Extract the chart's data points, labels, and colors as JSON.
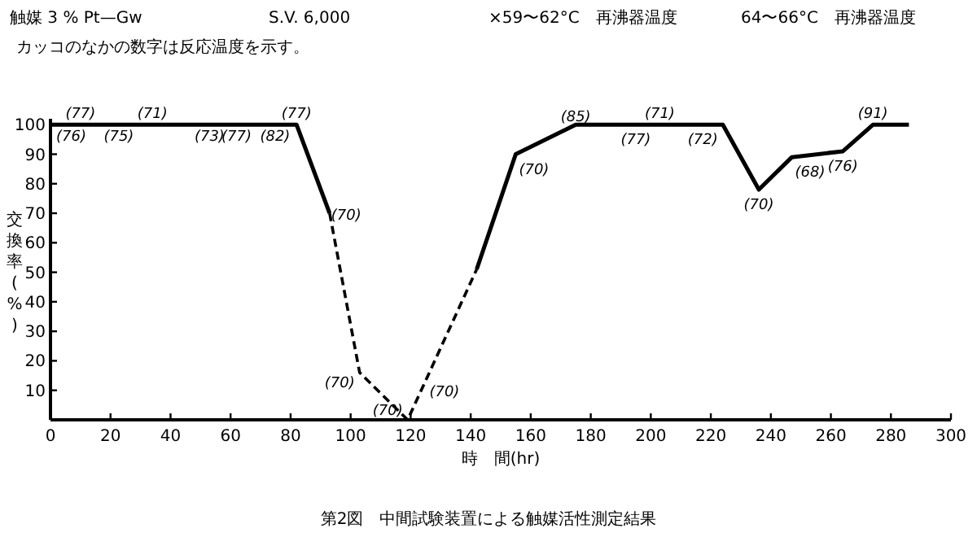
{
  "chart_data": {
    "type": "line",
    "title": "第2図　中間試験装置による触媒活性測定結果",
    "xlabel": "時　間(hr)",
    "ylabel": "交換率(%)",
    "xlim": [
      0,
      300
    ],
    "xticks": [
      0,
      20,
      40,
      60,
      80,
      100,
      120,
      140,
      160,
      180,
      200,
      220,
      240,
      260,
      280,
      300
    ],
    "ylim": [
      0,
      102
    ],
    "yticks": [
      10,
      20,
      30,
      40,
      50,
      60,
      70,
      80,
      90,
      100
    ],
    "grid": false,
    "marker": "none",
    "series": [
      {
        "color": "#000000",
        "line_style": "solid",
        "x": [
          0,
          82,
          93
        ],
        "values": [
          100,
          100,
          70
        ]
      },
      {
        "color": "#000000",
        "line_style": "solid",
        "x": [
          142,
          155,
          175,
          224,
          236,
          247,
          264,
          274,
          286
        ],
        "values": [
          51,
          90,
          100,
          100,
          78,
          89,
          91,
          100,
          100
        ]
      },
      {
        "color": "#000000",
        "line_style": "dashed",
        "x": [
          93,
          103,
          119,
          142
        ],
        "values": [
          70,
          16,
          0,
          51
        ]
      }
    ],
    "annotations": [
      "触媒 3 % Pt—Gw",
      "S.V. 6,000",
      "×59〜62°C　再沸器温度",
      "64〜66°C　再沸器温度",
      "カッコのなかの数字は反応温度を示す。",
      {
        "text": "(76)",
        "x": 3,
        "y": 100
      },
      {
        "text": "(77)",
        "x": 10,
        "y": 100
      },
      {
        "text": "(75)",
        "x": 21,
        "y": 100
      },
      {
        "text": "(71)",
        "x": 34,
        "y": 100
      },
      {
        "text": "(73)",
        "x": 53,
        "y": 100
      },
      {
        "text": "(77)",
        "x": 62,
        "y": 100
      },
      {
        "text": "(82)",
        "x": 72,
        "y": 100
      },
      {
        "text": "(77)",
        "x": 82,
        "y": 100
      },
      {
        "text": "(70)",
        "x": 93,
        "y": 70
      },
      {
        "text": "(70)",
        "x": 103,
        "y": 16
      },
      {
        "text": "(70)",
        "x": 119,
        "y": 0
      },
      {
        "text": "(70)",
        "x": 123,
        "y": 9
      },
      {
        "text": "(70)",
        "x": 155,
        "y": 90
      },
      {
        "text": "(85)",
        "x": 175,
        "y": 100
      },
      {
        "text": "(77)",
        "x": 195,
        "y": 100
      },
      {
        "text": "(71)",
        "x": 203,
        "y": 100
      },
      {
        "text": "(72)",
        "x": 224,
        "y": 100
      },
      {
        "text": "(70)",
        "x": 236,
        "y": 78
      },
      {
        "text": "(68)",
        "x": 247,
        "y": 89
      },
      {
        "text": "(76)",
        "x": 264,
        "y": 91
      },
      {
        "text": "(91)",
        "x": 274,
        "y": 100
      }
    ]
  }
}
